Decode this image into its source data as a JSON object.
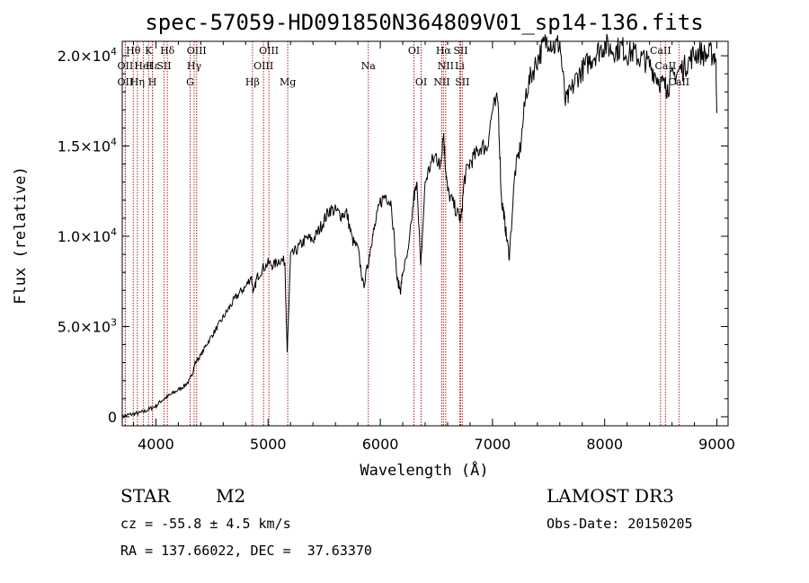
{
  "chart_data": {
    "type": "line",
    "title": "spec-57059-HD091850N364809V01_sp14-136.fits",
    "xlabel": "Wavelength (Å)",
    "ylabel": "Flux (relative)",
    "xlim": [
      3700,
      9100
    ],
    "ylim": [
      -500,
      20800
    ],
    "x_ticks": [
      {
        "value": 4000,
        "label": "4000"
      },
      {
        "value": 5000,
        "label": "5000"
      },
      {
        "value": 6000,
        "label": "6000"
      },
      {
        "value": 7000,
        "label": "7000"
      },
      {
        "value": 8000,
        "label": "8000"
      },
      {
        "value": 9000,
        "label": "9000"
      }
    ],
    "y_ticks": [
      {
        "value": 0,
        "label": "0",
        "mantissa": "",
        "exponent": ""
      },
      {
        "value": 5000,
        "label": "5.0×10³",
        "mantissa": "5.0×10",
        "exponent": "3"
      },
      {
        "value": 10000,
        "label": "1.0×10⁴",
        "mantissa": "1.0×10",
        "exponent": "4"
      },
      {
        "value": 15000,
        "label": "1.5×10⁴",
        "mantissa": "1.5×10",
        "exponent": "4"
      },
      {
        "value": 20000,
        "label": "2.0×10⁴",
        "mantissa": "2.0×10",
        "exponent": "4"
      }
    ],
    "series": [
      {
        "name": "flux",
        "x": [
          3700,
          3750,
          3800,
          3850,
          3900,
          3950,
          4000,
          4050,
          4100,
          4150,
          4200,
          4250,
          4300,
          4330,
          4350,
          4400,
          4450,
          4500,
          4550,
          4600,
          4650,
          4700,
          4750,
          4800,
          4850,
          4870,
          4900,
          4950,
          5000,
          5050,
          5100,
          5150,
          5170,
          5180,
          5200,
          5250,
          5300,
          5350,
          5400,
          5450,
          5500,
          5550,
          5600,
          5650,
          5700,
          5750,
          5800,
          5850,
          5893,
          5920,
          5950,
          6000,
          6050,
          6100,
          6150,
          6180,
          6200,
          6250,
          6300,
          6330,
          6360,
          6400,
          6450,
          6500,
          6530,
          6563,
          6580,
          6600,
          6650,
          6700,
          6720,
          6750,
          6800,
          6850,
          6900,
          6950,
          7000,
          7050,
          7080,
          7100,
          7120,
          7150,
          7200,
          7250,
          7300,
          7350,
          7400,
          7450,
          7500,
          7550,
          7600,
          7650,
          7700,
          7750,
          7800,
          7850,
          7900,
          7950,
          8000,
          8050,
          8100,
          8150,
          8200,
          8250,
          8300,
          8350,
          8400,
          8450,
          8500,
          8542,
          8560,
          8600,
          8662,
          8700,
          8750,
          8800,
          8850,
          8900,
          8950,
          8990,
          9000
        ],
        "y": [
          0,
          100,
          150,
          200,
          300,
          450,
          600,
          900,
          1100,
          1300,
          1500,
          1700,
          2000,
          2500,
          3000,
          3400,
          4000,
          4500,
          5000,
          5500,
          6000,
          6500,
          6900,
          7200,
          7800,
          6800,
          7700,
          8200,
          8500,
          8400,
          8700,
          8600,
          3500,
          5200,
          8900,
          9200,
          9600,
          9900,
          9800,
          10300,
          10900,
          11500,
          11400,
          11200,
          11300,
          9800,
          9300,
          7200,
          8500,
          9700,
          10500,
          11900,
          12300,
          11800,
          7600,
          7000,
          8000,
          9100,
          12200,
          12800,
          8200,
          13000,
          14000,
          14500,
          13800,
          15800,
          14000,
          12500,
          11800,
          11100,
          10900,
          13200,
          14100,
          14500,
          15000,
          14900,
          17000,
          17500,
          12000,
          11300,
          10200,
          8900,
          13500,
          15000,
          18000,
          19000,
          19800,
          20500,
          21000,
          20500,
          20700,
          17400,
          18000,
          18800,
          19200,
          19600,
          20000,
          20300,
          20600,
          20400,
          20300,
          20500,
          20100,
          20200,
          19900,
          19800,
          19500,
          19000,
          18500,
          18300,
          18200,
          18800,
          19200,
          19300,
          19700,
          20100,
          20200,
          20000,
          20100,
          20000,
          17000
        ]
      }
    ],
    "emission_lines": [
      {
        "name": "Hθ",
        "wavelength": 3798,
        "row": 0
      },
      {
        "name": "OII",
        "wavelength": 3727,
        "row": 2
      },
      {
        "name": "OII",
        "wavelength": 3727,
        "row": 1
      },
      {
        "name": "Hε",
        "wavelength": 3970,
        "row": 1
      },
      {
        "name": "K",
        "wavelength": 3934,
        "row": 0
      },
      {
        "name": "HeI",
        "wavelength": 3889,
        "row": 1
      },
      {
        "name": "Hη",
        "wavelength": 3835,
        "row": 2
      },
      {
        "name": "H",
        "wavelength": 3969,
        "row": 2
      },
      {
        "name": "SII",
        "wavelength": 4072,
        "row": 1
      },
      {
        "name": "Hδ",
        "wavelength": 4102,
        "row": 0
      },
      {
        "name": "OIII",
        "wavelength": 4363,
        "row": 0
      },
      {
        "name": "Hγ",
        "wavelength": 4341,
        "row": 1
      },
      {
        "name": "G",
        "wavelength": 4305,
        "row": 2
      },
      {
        "name": "OIII",
        "wavelength": 5007,
        "row": 0
      },
      {
        "name": "OIII",
        "wavelength": 4959,
        "row": 1
      },
      {
        "name": "Hβ",
        "wavelength": 4861,
        "row": 2
      },
      {
        "name": "Mg",
        "wavelength": 5175,
        "row": 2
      },
      {
        "name": "Na",
        "wavelength": 5893,
        "row": 1
      },
      {
        "name": "OI",
        "wavelength": 6300,
        "row": 0
      },
      {
        "name": "OI",
        "wavelength": 6364,
        "row": 2
      },
      {
        "name": "Hα",
        "wavelength": 6563,
        "row": 0
      },
      {
        "name": "SII",
        "wavelength": 6716,
        "row": 0
      },
      {
        "name": "NII",
        "wavelength": 6583,
        "row": 1
      },
      {
        "name": "Li",
        "wavelength": 6708,
        "row": 1
      },
      {
        "name": "NII",
        "wavelength": 6548,
        "row": 2
      },
      {
        "name": "SII",
        "wavelength": 6731,
        "row": 2
      },
      {
        "name": "CaII",
        "wavelength": 8498,
        "row": 0
      },
      {
        "name": "CaII",
        "wavelength": 8542,
        "row": 1
      },
      {
        "name": "CaII",
        "wavelength": 8662,
        "row": 2
      }
    ]
  },
  "info": {
    "object_class": "STAR",
    "subclass": "M2",
    "survey": "LAMOST DR3",
    "cz": "cz = -55.8 ± 4.5 km/s",
    "obs_date": "Obs-Date: 20150205",
    "coords": "RA = 137.66022, DEC =  37.63370"
  },
  "colors": {
    "line_marker": "#b22222",
    "spectrum": "#000000"
  }
}
